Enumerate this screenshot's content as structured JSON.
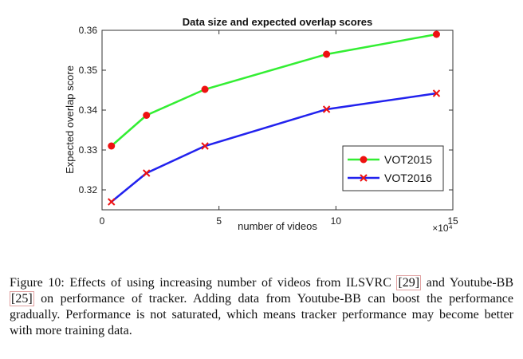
{
  "chart_data": {
    "type": "line",
    "title": "Data size and expected overlap scores",
    "xlabel": "number of videos",
    "ylabel": "Expected overlap score",
    "x_multiplier": "×10⁴",
    "xlim": [
      0,
      15
    ],
    "ylim": [
      0.315,
      0.36
    ],
    "xticks": [
      0,
      5,
      10,
      15
    ],
    "yticks": [
      0.32,
      0.33,
      0.34,
      0.35,
      0.36
    ],
    "xtick_labels": [
      "0",
      "5",
      "10",
      "15"
    ],
    "ytick_labels": [
      "0.32",
      "0.33",
      "0.34",
      "0.35",
      "0.36"
    ],
    "legend_position": "bottom-right",
    "series": [
      {
        "name": "VOT2015",
        "line_color": "#33ee33",
        "marker_color": "#ee1111",
        "marker": "circle",
        "x": [
          0.4,
          1.9,
          4.4,
          9.6,
          14.3
        ],
        "values": [
          0.331,
          0.3387,
          0.3452,
          0.354,
          0.359
        ]
      },
      {
        "name": "VOT2016",
        "line_color": "#2222ee",
        "marker_color": "#ee1111",
        "marker": "x",
        "x": [
          0.4,
          1.9,
          4.4,
          9.6,
          14.3
        ],
        "values": [
          0.317,
          0.3242,
          0.331,
          0.3402,
          0.3442
        ]
      }
    ]
  },
  "caption": {
    "prefix": "Figure 10:  Effects of using increasing number of videos from ILSVRC ",
    "ref1": "[29]",
    "mid1": " and Youtube-BB ",
    "ref2": "[25]",
    "rest": " on performance of tracker.  Adding data from Youtube-BB can boost the performance gradually. Performance is not saturated, which means tracker performance may become better with more training data."
  }
}
